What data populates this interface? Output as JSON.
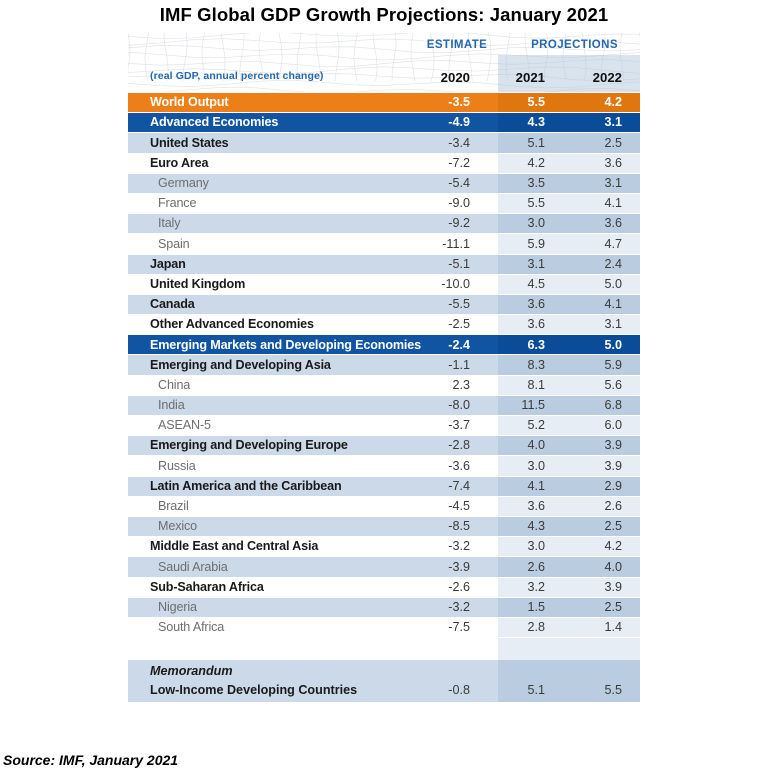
{
  "title": "IMF Global GDP Growth Projections: January 2021",
  "source": "Source: IMF, January 2021",
  "header": {
    "estimate_label": "ESTIMATE",
    "projections_label": "PROJECTIONS",
    "subtitle": "(real GDP, annual percent change)",
    "years": [
      "2020",
      "2021",
      "2022"
    ]
  },
  "colors": {
    "world_row_orange": "#EC7F17",
    "world_row_orange_band": "#E0760E",
    "aggregate_row_blue": "#1155A2",
    "aggregate_row_blue_band": "#0B4C99",
    "light_row_blue": "#CBD9E9",
    "light_row_blue_band": "#BACDE0",
    "white_row_band": "#E7EDF4",
    "header_text_blue": "#2368AE",
    "sub_label_gray": "#6E6E6E"
  },
  "chart_data": {
    "type": "table",
    "title": "IMF Global GDP Growth Projections: January 2021",
    "subtitle": "(real GDP, annual percent change)",
    "column_groups": [
      {
        "label": "ESTIMATE",
        "columns": [
          "2020"
        ]
      },
      {
        "label": "PROJECTIONS",
        "columns": [
          "2021",
          "2022"
        ]
      }
    ],
    "columns": [
      "2020",
      "2021",
      "2022"
    ],
    "rows": [
      {
        "label": "World Output",
        "values": [
          "-3.5",
          "5.5",
          "4.2"
        ],
        "style": "world",
        "shade": ""
      },
      {
        "label": "Advanced Economies",
        "values": [
          "-4.9",
          "4.3",
          "3.1"
        ],
        "style": "aggregate",
        "shade": ""
      },
      {
        "label": "United States",
        "values": [
          "-3.4",
          "5.1",
          "2.5"
        ],
        "style": "bold",
        "shade": "light"
      },
      {
        "label": "Euro Area",
        "values": [
          "-7.2",
          "4.2",
          "3.6"
        ],
        "style": "bold",
        "shade": "white"
      },
      {
        "label": "Germany",
        "values": [
          "-5.4",
          "3.5",
          "3.1"
        ],
        "style": "sub",
        "shade": "light"
      },
      {
        "label": "France",
        "values": [
          "-9.0",
          "5.5",
          "4.1"
        ],
        "style": "sub",
        "shade": "white"
      },
      {
        "label": "Italy",
        "values": [
          "-9.2",
          "3.0",
          "3.6"
        ],
        "style": "sub",
        "shade": "light"
      },
      {
        "label": "Spain",
        "values": [
          "-11.1",
          "5.9",
          "4.7"
        ],
        "style": "sub",
        "shade": "white"
      },
      {
        "label": "Japan",
        "values": [
          "-5.1",
          "3.1",
          "2.4"
        ],
        "style": "bold",
        "shade": "light"
      },
      {
        "label": "United Kingdom",
        "values": [
          "-10.0",
          "4.5",
          "5.0"
        ],
        "style": "bold",
        "shade": "white"
      },
      {
        "label": "Canada",
        "values": [
          "-5.5",
          "3.6",
          "4.1"
        ],
        "style": "bold",
        "shade": "light"
      },
      {
        "label": "Other Advanced Economies",
        "values": [
          "-2.5",
          "3.6",
          "3.1"
        ],
        "style": "bold",
        "shade": "white"
      },
      {
        "label": "Emerging Markets and Developing Economies",
        "values": [
          "-2.4",
          "6.3",
          "5.0"
        ],
        "style": "aggregate",
        "shade": ""
      },
      {
        "label": "Emerging and Developing Asia",
        "values": [
          "-1.1",
          "8.3",
          "5.9"
        ],
        "style": "bold",
        "shade": "light"
      },
      {
        "label": "China",
        "values": [
          "2.3",
          "8.1",
          "5.6"
        ],
        "style": "sub",
        "shade": "white"
      },
      {
        "label": "India",
        "values": [
          "-8.0",
          "11.5",
          "6.8"
        ],
        "style": "sub",
        "shade": "light"
      },
      {
        "label": "ASEAN-5",
        "values": [
          "-3.7",
          "5.2",
          "6.0"
        ],
        "style": "sub",
        "shade": "white"
      },
      {
        "label": "Emerging and Developing Europe",
        "values": [
          "-2.8",
          "4.0",
          "3.9"
        ],
        "style": "bold",
        "shade": "light"
      },
      {
        "label": "Russia",
        "values": [
          "-3.6",
          "3.0",
          "3.9"
        ],
        "style": "sub",
        "shade": "white"
      },
      {
        "label": "Latin America and the Caribbean",
        "values": [
          "-7.4",
          "4.1",
          "2.9"
        ],
        "style": "bold",
        "shade": "light"
      },
      {
        "label": "Brazil",
        "values": [
          "-4.5",
          "3.6",
          "2.6"
        ],
        "style": "sub",
        "shade": "white"
      },
      {
        "label": "Mexico",
        "values": [
          "-8.5",
          "4.3",
          "2.5"
        ],
        "style": "sub",
        "shade": "light"
      },
      {
        "label": "Middle East and Central Asia",
        "values": [
          "-3.2",
          "3.0",
          "4.2"
        ],
        "style": "bold",
        "shade": "white"
      },
      {
        "label": "Saudi Arabia",
        "values": [
          "-3.9",
          "2.6",
          "4.0"
        ],
        "style": "sub",
        "shade": "light"
      },
      {
        "label": "Sub-Saharan Africa",
        "values": [
          "-2.6",
          "3.2",
          "3.9"
        ],
        "style": "bold",
        "shade": "white"
      },
      {
        "label": "Nigeria",
        "values": [
          "-3.2",
          "1.5",
          "2.5"
        ],
        "style": "sub",
        "shade": "light"
      },
      {
        "label": "South Africa",
        "values": [
          "-7.5",
          "2.8",
          "1.4"
        ],
        "style": "sub",
        "shade": "white"
      }
    ],
    "memorandum": {
      "heading": "Memorandum",
      "label": "Low-Income Developing Countries",
      "values": [
        "-0.8",
        "5.1",
        "5.5"
      ]
    },
    "source": "Source: IMF, January 2021"
  }
}
